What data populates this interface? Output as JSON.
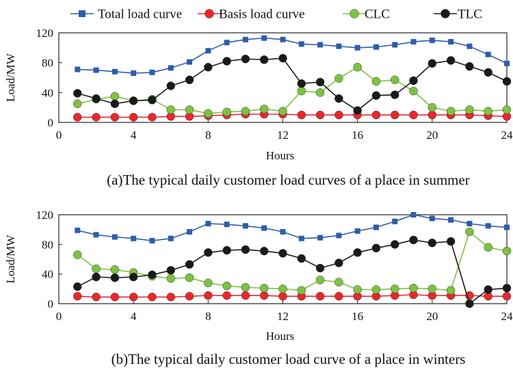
{
  "legend": [
    {
      "name": "Total load curve",
      "color": "#2E5DA8",
      "marker": "square"
    },
    {
      "name": "Basis load curve",
      "color": "#E8282B",
      "marker": "circle"
    },
    {
      "name": "CLC",
      "color": "#7DC242",
      "marker": "circle"
    },
    {
      "name": "TLC",
      "color": "#1A1A1A",
      "marker": "circle"
    }
  ],
  "chart_data": [
    {
      "type": "line",
      "title": "(a)The typical daily customer load curves of a place in summer",
      "xlabel": "Hours",
      "ylabel": "Load/MW",
      "xlim": [
        0,
        24
      ],
      "ylim": [
        0,
        120
      ],
      "xticks": [
        0,
        4,
        8,
        12,
        16,
        20,
        24
      ],
      "yticks": [
        0,
        40,
        80,
        120
      ],
      "x": [
        1,
        2,
        3,
        4,
        5,
        6,
        7,
        8,
        9,
        10,
        11,
        12,
        13,
        14,
        15,
        16,
        17,
        18,
        19,
        20,
        21,
        22,
        23,
        24
      ],
      "series": [
        {
          "name": "Total load curve",
          "values": [
            71,
            70,
            68,
            66,
            67,
            73,
            81,
            96,
            107,
            111,
            113,
            111,
            105,
            104,
            102,
            100,
            101,
            104,
            108,
            110,
            108,
            102,
            91,
            79
          ]
        },
        {
          "name": "Basis load curve",
          "values": [
            7,
            7,
            7,
            7,
            7,
            8,
            8,
            9,
            10,
            11,
            11,
            11,
            10,
            10,
            10,
            10,
            10,
            10,
            10,
            10,
            10,
            10,
            9,
            8
          ]
        },
        {
          "name": "CLC",
          "values": [
            25,
            31,
            35,
            29,
            31,
            17,
            17,
            12,
            14,
            15,
            18,
            15,
            42,
            40,
            59,
            74,
            55,
            57,
            42,
            20,
            15,
            17,
            15,
            17
          ]
        },
        {
          "name": "TLC",
          "values": [
            39,
            32,
            25,
            29,
            30,
            49,
            57,
            74,
            82,
            85,
            84,
            86,
            52,
            54,
            32,
            16,
            36,
            37,
            56,
            79,
            83,
            75,
            67,
            55
          ]
        }
      ]
    },
    {
      "type": "line",
      "title": "(b)The typical daily customer load curve of a place in winters",
      "xlabel": "Hours",
      "ylabel": "Load/MW",
      "xlim": [
        0,
        24
      ],
      "ylim": [
        0,
        120
      ],
      "xticks": [
        0,
        4,
        8,
        12,
        16,
        20,
        24
      ],
      "yticks": [
        0,
        40,
        80,
        120
      ],
      "x": [
        1,
        2,
        3,
        4,
        5,
        6,
        7,
        8,
        9,
        10,
        11,
        12,
        13,
        14,
        15,
        16,
        17,
        18,
        19,
        20,
        21,
        22,
        23,
        24
      ],
      "series": [
        {
          "name": "Total load curve",
          "values": [
            99,
            93,
            90,
            88,
            85,
            88,
            97,
            108,
            107,
            105,
            102,
            97,
            88,
            89,
            92,
            98,
            103,
            111,
            120,
            115,
            113,
            108,
            105,
            103
          ]
        },
        {
          "name": "Basis load curve",
          "values": [
            10,
            9,
            9,
            9,
            9,
            9,
            10,
            11,
            11,
            11,
            11,
            10,
            10,
            10,
            10,
            10,
            10,
            11,
            12,
            11,
            11,
            11,
            10,
            10
          ]
        },
        {
          "name": "CLC",
          "values": [
            66,
            47,
            46,
            42,
            37,
            34,
            35,
            28,
            24,
            22,
            21,
            20,
            18,
            32,
            29,
            19,
            19,
            20,
            21,
            20,
            18,
            97,
            76,
            71
          ]
        },
        {
          "name": "TLC",
          "values": [
            23,
            36,
            35,
            36,
            39,
            45,
            53,
            69,
            72,
            73,
            71,
            68,
            61,
            48,
            55,
            69,
            75,
            80,
            86,
            82,
            84,
            0,
            19,
            21
          ]
        }
      ]
    }
  ]
}
